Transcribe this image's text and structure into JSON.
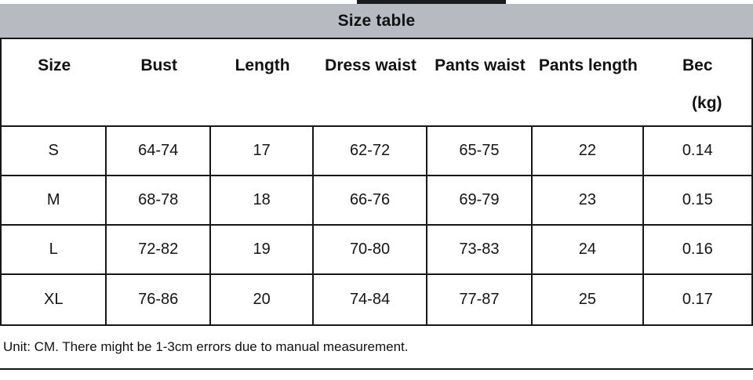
{
  "chart_data": {
    "type": "table",
    "title": "Size table",
    "columns": [
      "Size",
      "Bust",
      "Length",
      "Dress waist",
      "Pants waist",
      "Pants length",
      "Bec"
    ],
    "last_column_unit": "(kg)",
    "rows": [
      [
        "S",
        "64-74",
        "17",
        "62-72",
        "65-75",
        "22",
        "0.14"
      ],
      [
        "M",
        "68-78",
        "18",
        "66-76",
        "69-79",
        "23",
        "0.15"
      ],
      [
        "L",
        "72-82",
        "19",
        "70-80",
        "73-83",
        "24",
        "0.16"
      ],
      [
        "XL",
        "76-86",
        "20",
        "74-84",
        "77-87",
        "25",
        "0.17"
      ]
    ],
    "footnote": "Unit: CM. There might be 1-3cm errors due to manual measurement."
  },
  "colors": {
    "title_bar_bg": "#b7bac1",
    "border": "#17171a",
    "text": "#111111",
    "background": "#ffffff"
  }
}
